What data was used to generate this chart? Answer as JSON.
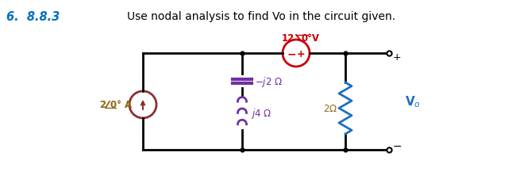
{
  "title_number": "6.  8.8.3",
  "title_text": "Use nodal analysis to find Vo in the circuit given.",
  "title_number_color": "#0070C0",
  "title_text_color": "#000000",
  "bg_color": "#ffffff",
  "vsource_color": "#cc0000",
  "isource_color": "#8B3030",
  "capacitor_color": "#7030A0",
  "inductor_color": "#7030A0",
  "resistor_color": "#1F6FBF",
  "circuit_color": "#000000",
  "label_color": "#8B6914",
  "node_dot_color": "#000000"
}
